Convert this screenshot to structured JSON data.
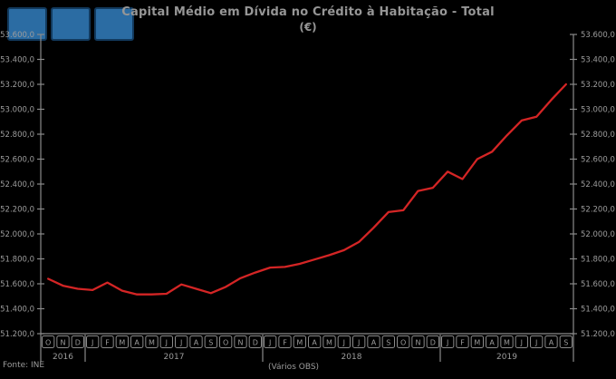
{
  "colors": {
    "background": "#000000",
    "text": "#9c9c9c",
    "axis": "#8a8a8a",
    "line": "#d42525",
    "logo_tile": "#2b6ca3",
    "logo_tile_border": "#123a5e"
  },
  "logo": {
    "tiles": [
      "tile",
      "tile",
      "tile"
    ]
  },
  "header": {
    "title": "Capital Médio em Dívida no Crédito à Habitação - Total",
    "unit": "(€)"
  },
  "footer": {
    "source": "Fonte: INE",
    "axis_note": "(Vários OBS)"
  },
  "chart_data": {
    "type": "line",
    "title": "Capital Médio em Dívida no Crédito à Habitação - Total",
    "ylabel": "(€)",
    "xlabel": "",
    "legend": null,
    "grid": false,
    "line_color": "#d42525",
    "ylim": [
      51200,
      53600
    ],
    "ytick_step": 200,
    "ytick_labels_top_to_bottom": [
      "53.600,0",
      "53.400,0",
      "53.200,0",
      "53.000,0",
      "52.800,0",
      "52.600,0",
      "52.400,0",
      "52.200,0",
      "52.000,0",
      "51.800,0",
      "51.600,0",
      "51.400,0",
      "51.200,0"
    ],
    "month_letters": [
      "O",
      "N",
      "D",
      "J",
      "F",
      "M",
      "A",
      "M",
      "J",
      "J",
      "A",
      "S",
      "O",
      "N",
      "D",
      "J",
      "F",
      "M",
      "A",
      "M",
      "J",
      "J",
      "A",
      "S",
      "O",
      "N",
      "D",
      "J",
      "F",
      "M",
      "A",
      "M",
      "J",
      "J",
      "A",
      "S"
    ],
    "year_groups": [
      {
        "label": "2016",
        "span": 3
      },
      {
        "label": "2017",
        "span": 12
      },
      {
        "label": "2018",
        "span": 12
      },
      {
        "label": "2019",
        "span": 9
      }
    ],
    "x_period_labels": [
      "2016-10",
      "2016-11",
      "2016-12",
      "2017-01",
      "2017-02",
      "2017-03",
      "2017-04",
      "2017-05",
      "2017-06",
      "2017-07",
      "2017-08",
      "2017-09",
      "2017-10",
      "2017-11",
      "2017-12",
      "2018-01",
      "2018-02",
      "2018-03",
      "2018-04",
      "2018-05",
      "2018-06",
      "2018-07",
      "2018-08",
      "2018-09",
      "2018-10",
      "2018-11",
      "2018-12",
      "2019-01",
      "2019-02",
      "2019-03",
      "2019-04",
      "2019-05",
      "2019-06",
      "2019-07",
      "2019-08",
      "2019-09"
    ],
    "values": [
      51640,
      51585,
      51560,
      51550,
      51610,
      51545,
      51515,
      51515,
      51520,
      51595,
      51560,
      51525,
      51575,
      51645,
      51690,
      51730,
      51735,
      51760,
      51795,
      51830,
      51870,
      51935,
      52050,
      52175,
      52190,
      52345,
      52370,
      52500,
      52440,
      52600,
      52660,
      52790,
      52910,
      52940,
      53075,
      53200
    ]
  }
}
